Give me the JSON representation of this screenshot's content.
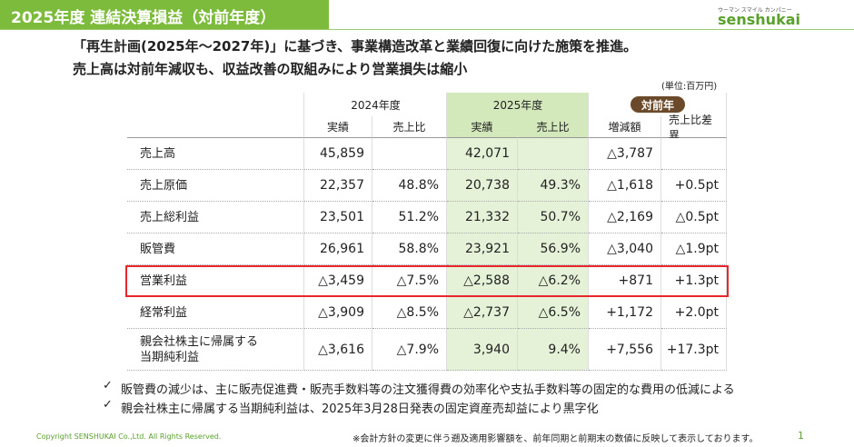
{
  "header": {
    "title": "2025年度 連結決算損益（対前年度）",
    "logo_tagline": "ウーマン スマイル カンパニー",
    "logo": "senshukai"
  },
  "subtitle": [
    "「再生計画(2025年～2027年)」に基づき、事業構造改革と業績回復に向けた施策を推進。",
    "売上高は対前年減収も、収益改善の取組みにより営業損失は縮小"
  ],
  "unit": "(単位:百万円)",
  "table": {
    "group_headers": [
      "2024年度",
      "2025年度",
      "対前年"
    ],
    "sub_headers": [
      "実績",
      "売上比",
      "実績",
      "売上比",
      "増減額",
      "売上比差異"
    ],
    "rows": [
      [
        "売上高",
        "45,859",
        null,
        "42,071",
        null,
        "△3,787",
        null
      ],
      [
        "売上原価",
        "22,357",
        "48.8%",
        "20,738",
        "49.3%",
        "△1,618",
        "+0.5pt"
      ],
      [
        "売上総利益",
        "23,501",
        "51.2%",
        "21,332",
        "50.7%",
        "△2,169",
        "△0.5pt"
      ],
      [
        "販管費",
        "26,961",
        "58.8%",
        "23,921",
        "56.9%",
        "△3,040",
        "△1.9pt"
      ],
      [
        "営業利益",
        "△3,459",
        "△7.5%",
        "△2,588",
        "△6.2%",
        "+871",
        "+1.3pt"
      ],
      [
        "経常利益",
        "△3,909",
        "△8.5%",
        "△2,737",
        "△6.5%",
        "+1,172",
        "+2.0pt"
      ],
      [
        "親会社株主に帰属する\n当期純利益",
        "△3,616",
        "△7.9%",
        "3,940",
        "9.4%",
        "+7,556",
        "+17.3pt"
      ]
    ]
  },
  "bullets": [
    "販管費の減少は、主に販売促進費・販売手数料等の注文獲得費の効率化や支払手数料等の固定的な費用の低減による",
    "親会社株主に帰属する当期純利益は、2025年3月28日発表の固定資産売却益により黒字化"
  ],
  "footer": {
    "copyright": "Copyright SENSHUKAI Co.,Ltd. All Rights Reserved.",
    "note": "※会計方針の変更に伴う遡及適用影響額を、前年同期と前期末の数値に反映して表示しております。",
    "page": 1
  }
}
